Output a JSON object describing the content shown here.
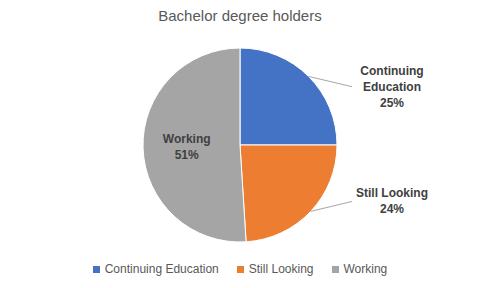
{
  "chart_data": {
    "type": "pie",
    "title": "Bachelor degree holders",
    "categories": [
      "Continuing Education",
      "Still Looking",
      "Working"
    ],
    "values": [
      25,
      24,
      51
    ],
    "value_labels": [
      "25%",
      "24%",
      "51%"
    ],
    "colors": [
      "#4472c4",
      "#ed7d31",
      "#a5a5a5"
    ],
    "data_labels": true,
    "legend": "bottom"
  }
}
